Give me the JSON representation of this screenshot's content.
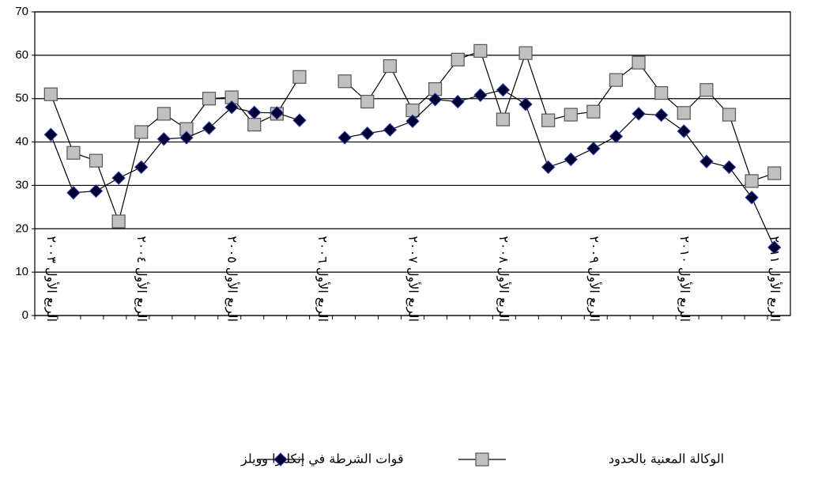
{
  "chart_data": {
    "type": "line",
    "categories": [
      "الربع الأول ٢٠٠٣",
      null,
      null,
      null,
      "الربع الأول ٢٠٠٤",
      null,
      null,
      null,
      "الربع الأول ٢٠٠٥",
      null,
      null,
      null,
      "الربع الأول ٢٠٠٦",
      null,
      null,
      null,
      "الربع الأول ٢٠٠٧",
      null,
      null,
      null,
      "الربع الأول ٢٠٠٨",
      null,
      null,
      null,
      "الربع الأول ٢٠٠٩",
      null,
      null,
      null,
      "الربع الأول ٢٠١٠",
      null,
      null,
      null,
      "الربع الأول ٢٠١١"
    ],
    "series": [
      {
        "name": "الوكالة المعنية بالحدود",
        "color": "#c0c0c0",
        "marker": "square",
        "values": [
          51,
          37.5,
          35.7,
          21.7,
          42.3,
          46.5,
          43,
          50,
          50.3,
          44,
          46.5,
          55,
          null,
          54,
          49.3,
          57.5,
          47.3,
          52.2,
          59,
          61,
          45.2,
          60.5,
          45,
          46.3,
          47,
          54.3,
          58.3,
          51.3,
          46.7,
          52,
          46.3,
          31,
          32.8
        ]
      },
      {
        "name": "قوات الشرطة في إنكلترا وويلز",
        "color": "#000033",
        "marker": "diamond",
        "values": [
          41.7,
          28.3,
          28.7,
          31.7,
          34.2,
          40.7,
          41,
          43.2,
          48,
          46.8,
          46.7,
          45,
          null,
          41,
          42,
          42.8,
          44.8,
          49.8,
          49.3,
          50.8,
          52,
          48.7,
          34.2,
          36,
          38.5,
          41.3,
          46.5,
          46.2,
          42.5,
          35.5,
          34.2,
          27.2,
          15.7
        ]
      }
    ],
    "ylim": [
      0,
      70
    ],
    "yticks": [
      0,
      10,
      20,
      30,
      40,
      50,
      60,
      70
    ],
    "grid": true,
    "legend": "bottom"
  }
}
